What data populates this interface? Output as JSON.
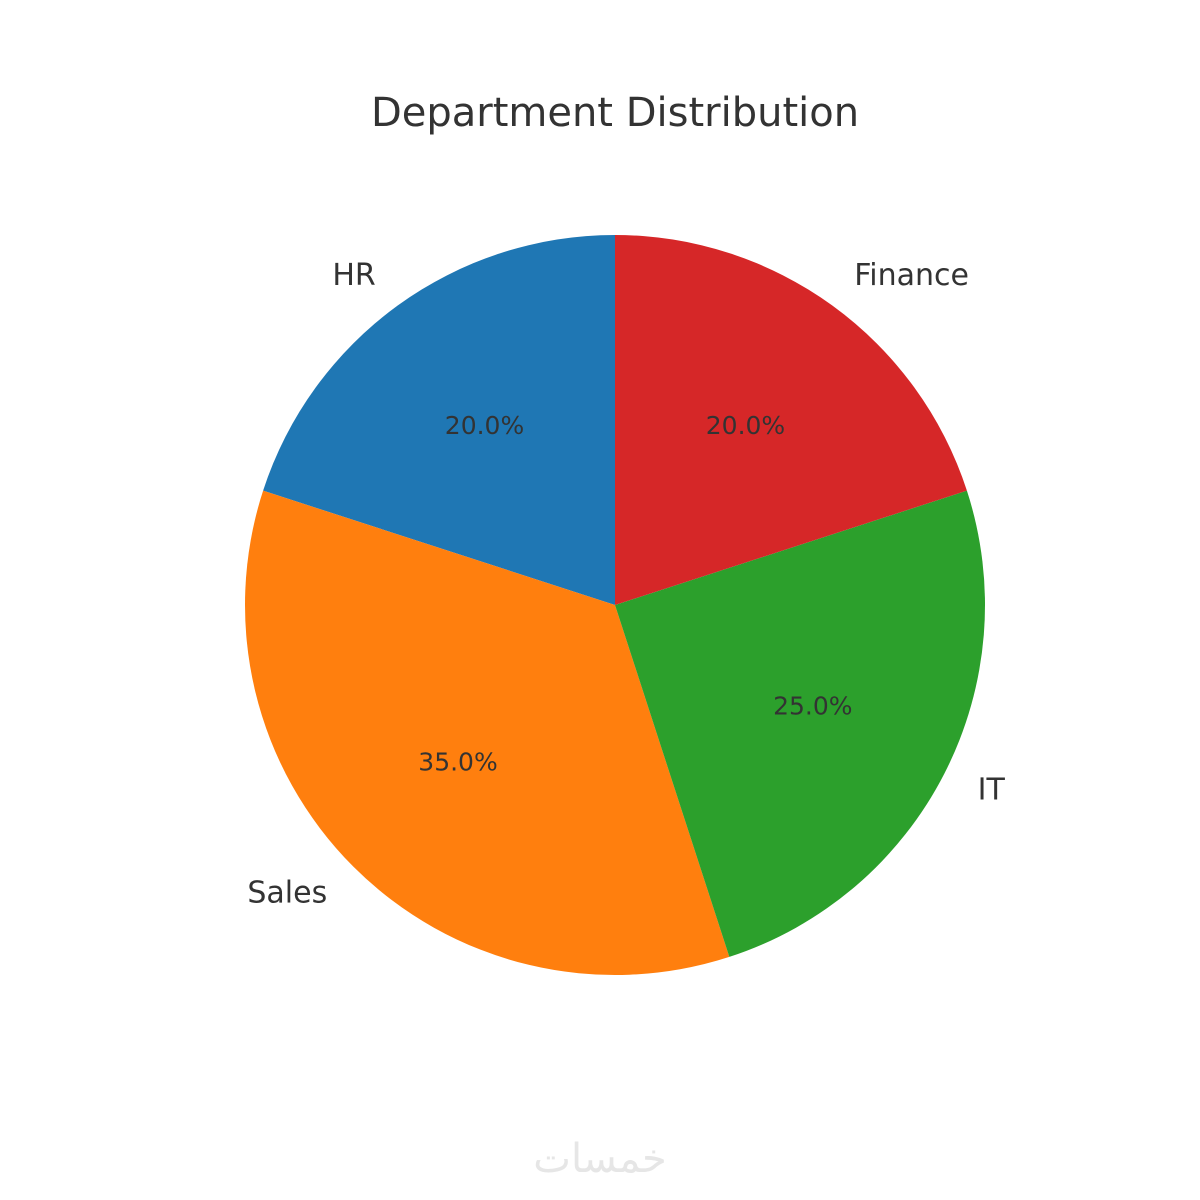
{
  "chart_data": {
    "type": "pie",
    "title": "Department Distribution",
    "categories": [
      "HR",
      "Sales",
      "IT",
      "Finance"
    ],
    "values": [
      20.0,
      35.0,
      25.0,
      20.0
    ],
    "percent_labels": [
      "20.0%",
      "35.0%",
      "25.0%",
      "20.0%"
    ],
    "colors": [
      "#1f77b4",
      "#ff7f0e",
      "#2ca02c",
      "#d62728"
    ],
    "start_angle_deg": 90,
    "direction": "counterclockwise"
  },
  "watermark": {
    "text": "خمسات"
  }
}
